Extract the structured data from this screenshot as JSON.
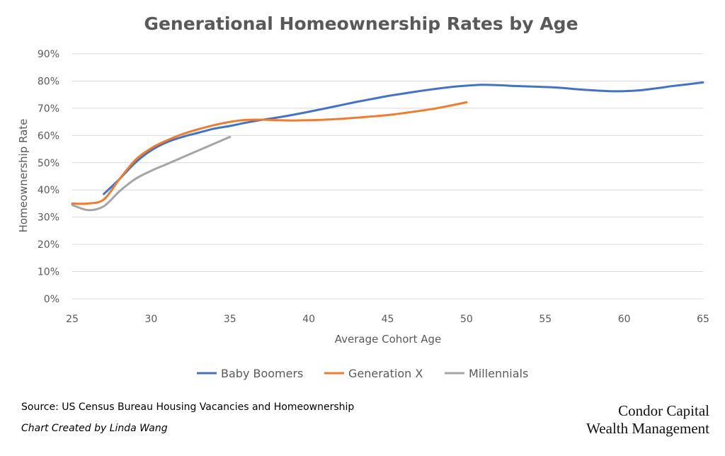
{
  "chart_data": {
    "type": "line",
    "title": "Generational Homeownership Rates by Age",
    "xlabel": "Average Cohort Age",
    "ylabel": "Homeownership Rate",
    "xlim": [
      25,
      65
    ],
    "ylim": [
      0,
      90
    ],
    "xticks": [
      25,
      30,
      35,
      40,
      45,
      50,
      55,
      60,
      65
    ],
    "yticks": [
      0,
      10,
      20,
      30,
      40,
      50,
      60,
      70,
      80,
      90
    ],
    "ytick_suffix": "%",
    "grid": "horizontal",
    "legend": "bottom",
    "series": [
      {
        "name": "Baby Boomers",
        "color": "#4472C4",
        "x": [
          27,
          28,
          29,
          30,
          31,
          32,
          33,
          34,
          35,
          36,
          37,
          38,
          39,
          40,
          41,
          42,
          43,
          44,
          45,
          46,
          47,
          48,
          49,
          50,
          51,
          52,
          53,
          54,
          55,
          56,
          57,
          58,
          59,
          60,
          61,
          62,
          63,
          64,
          65
        ],
        "y": [
          38.5,
          44,
          50,
          54.5,
          57.5,
          59.5,
          61,
          62.5,
          63.5,
          64.7,
          65.7,
          66.6,
          67.6,
          68.7,
          69.9,
          71.1,
          72.3,
          73.4,
          74.5,
          75.4,
          76.3,
          77.1,
          77.8,
          78.3,
          78.6,
          78.5,
          78.2,
          78,
          77.8,
          77.5,
          77,
          76.6,
          76.3,
          76.3,
          76.6,
          77.3,
          78.1,
          78.8,
          79.5
        ]
      },
      {
        "name": "Generation X",
        "color": "#ED7D31",
        "x": [
          25,
          26,
          27,
          28,
          29,
          30,
          31,
          32,
          33,
          34,
          35,
          36,
          37,
          38,
          39,
          40,
          41,
          42,
          43,
          44,
          45,
          46,
          47,
          48,
          49,
          50
        ],
        "y": [
          35,
          35,
          36.5,
          44,
          51,
          55.3,
          58.2,
          60.5,
          62.3,
          63.8,
          65,
          65.7,
          65.8,
          65.6,
          65.5,
          65.6,
          65.8,
          66.1,
          66.5,
          67,
          67.5,
          68.2,
          69,
          69.9,
          71,
          72.2
        ]
      },
      {
        "name": "Millennials",
        "color": "#A5A5A5",
        "x": [
          25,
          26,
          27,
          28,
          29,
          30,
          31,
          32,
          33,
          34,
          35
        ],
        "y": [
          34.5,
          32.6,
          34,
          39.5,
          44,
          47,
          49.5,
          52,
          54.5,
          57,
          59.5
        ]
      }
    ]
  },
  "footer": {
    "source": "Source: US Census Bureau Housing Vacancies and Homeownership",
    "credit": "Chart Created by Linda Wang",
    "brand_line1": "Condor Capital",
    "brand_line2": "Wealth Management"
  }
}
